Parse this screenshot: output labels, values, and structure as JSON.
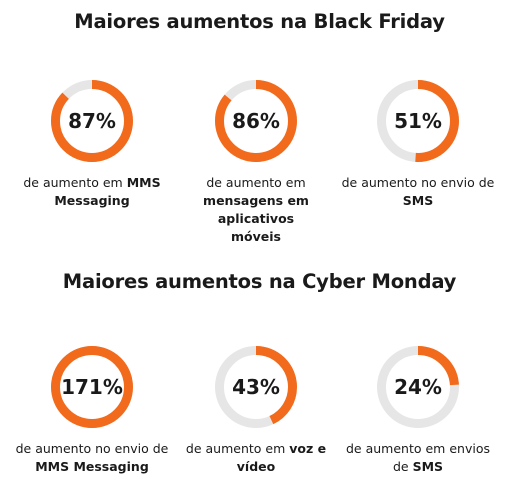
{
  "chart_data": [
    {
      "type": "donut",
      "title": "Maiores aumentos na Black Friday",
      "categories": [
        "MMS Messaging",
        "mensagens em aplicativos móveis",
        "SMS"
      ],
      "values": [
        87,
        86,
        51
      ],
      "unit": "%",
      "items": [
        {
          "value": 87,
          "label": "87%",
          "caption_prefix": "de aumento em ",
          "caption_bold": "MMS Messaging",
          "caption_suffix": ""
        },
        {
          "value": 86,
          "label": "86%",
          "caption_prefix": "de aumento em ",
          "caption_bold": "mensagens em aplicativos móveis",
          "caption_suffix": ""
        },
        {
          "value": 51,
          "label": "51%",
          "caption_prefix": "de aumento no envio de ",
          "caption_bold": "SMS",
          "caption_suffix": ""
        }
      ]
    },
    {
      "type": "donut",
      "title": "Maiores aumentos na Cyber Monday",
      "categories": [
        "MMS Messaging",
        "voz e vídeo",
        "SMS"
      ],
      "values": [
        171,
        43,
        24
      ],
      "unit": "%",
      "items": [
        {
          "value": 171,
          "label": "171%",
          "caption_prefix": "de aumento no envio de ",
          "caption_bold": "MMS Messaging",
          "caption_suffix": ""
        },
        {
          "value": 43,
          "label": "43%",
          "caption_prefix": "de aumento em ",
          "caption_bold": "voz e vídeo",
          "caption_suffix": ""
        },
        {
          "value": 24,
          "label": "24%",
          "caption_prefix": "de aumento em envios de ",
          "caption_bold": "SMS",
          "caption_suffix": ""
        }
      ]
    }
  ],
  "colors": {
    "accent": "#f26a1b",
    "track": "#e6e6e6",
    "text": "#1a1a1a"
  }
}
